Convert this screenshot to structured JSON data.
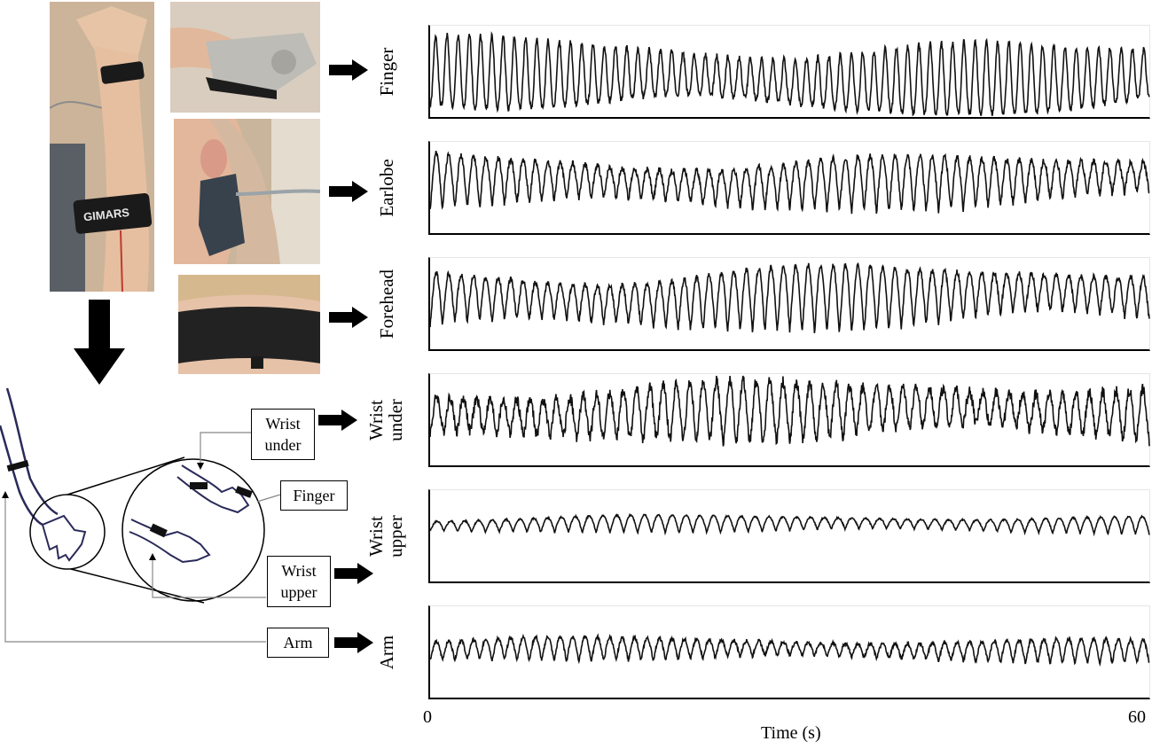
{
  "photos": {
    "arm_band": "GIMARS",
    "finger": "",
    "earlobe": "",
    "forehead": ""
  },
  "diagram": {
    "labels": {
      "wrist_under": [
        "Wrist",
        "under"
      ],
      "finger": "Finger",
      "wrist_upper": [
        "Wrist",
        "upper"
      ],
      "arm": "Arm"
    }
  },
  "signals": [
    {
      "name": "Finger",
      "label_lines": [
        "Finger"
      ]
    },
    {
      "name": "Earlobe",
      "label_lines": [
        "Earlobe"
      ]
    },
    {
      "name": "Forehead",
      "label_lines": [
        "Forehead"
      ]
    },
    {
      "name": "Wrist under",
      "label_lines": [
        "Wrist",
        "under"
      ]
    },
    {
      "name": "Wrist upper",
      "label_lines": [
        "Wrist",
        "upper"
      ]
    },
    {
      "name": "Arm",
      "label_lines": [
        "Arm"
      ]
    }
  ],
  "axis": {
    "x_start": "0",
    "x_end": "60",
    "x_label": "Time (s)"
  },
  "colors": {
    "trace": "#111111",
    "band": "#1c1c1c",
    "skin": "#e9c3a8",
    "sensor_gray": "#b9b9b5",
    "diagram_ink": "#2a2a5a"
  }
}
